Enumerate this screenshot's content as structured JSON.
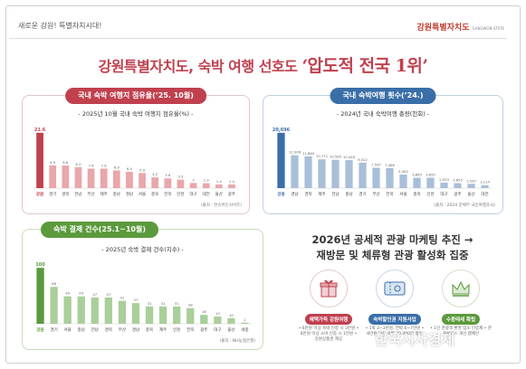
{
  "header": {
    "left_text": "새로운 강원! 특별자치시대!",
    "brand": "강원특별자치도",
    "brand_sub": "GANGWON STATE"
  },
  "headline": {
    "prefix": "강원특별자치도, 숙박 여행 선호도 ",
    "highlight": "‘압도적 전국 1위’"
  },
  "colors": {
    "red": "#c0404e",
    "red_light": "#e8a7ab",
    "blue": "#3a6ea8",
    "blue_light": "#a9bfd8",
    "green": "#5b9a3c",
    "green_light": "#a9cf9a"
  },
  "promo": {
    "line1": "2026년 공세적 관광 마케팅 추진 →",
    "line2": "재방문 및 체류형 관광 활성화 집중",
    "items": [
      {
        "icon": "gift-icon",
        "label": "혜택가득 강원여행",
        "desc": "• 6만원 이상 숙박 인증 시 3만원 • 8만원 이상 소비 인증 시 1만원 • 강원상품권 제공"
      },
      {
        "icon": "ticket-icon",
        "label": "숙박할인권 지원사업",
        "desc": "• 1박 2~3만원, 연박 6~7만원 • 8만원 이상 숙박 30,000원 할인"
      },
      {
        "icon": "crown-icon",
        "label": "수용태세 확립",
        "desc": "• 1인 관광객 환영 업소 인증제 • 관광서비스 개선 캠페인"
      }
    ]
  },
  "watermark": "한국시사경제",
  "chart_data": [
    {
      "type": "bar",
      "panel_title": "국내 숙박 여행지 점유율(’25. 10월)",
      "subtitle": "- 2025년 10월 국내 숙박 여행지 점유율(%) -",
      "source": "(출처 : 컨슈머인사이트)",
      "categories": [
        "강원",
        "경기",
        "경북",
        "전남",
        "부산",
        "제주",
        "충남",
        "경남",
        "서울",
        "충북",
        "전북",
        "인천",
        "대구",
        "대전",
        "울산",
        "광주"
      ],
      "values": [
        21.6,
        8.9,
        8.8,
        8.2,
        7.6,
        7.6,
        6.9,
        6.4,
        5.9,
        4.2,
        3.8,
        3.3,
        2.0,
        1.9,
        1.4,
        1.4
      ],
      "labels": [
        "21.6",
        "8.9",
        "8.8",
        "8.2",
        "7.6",
        "7.6",
        "6.9",
        "6.4",
        "5.9",
        "4.2",
        "3.8",
        "3.3",
        "2",
        "1.9",
        "1.4",
        "1.4"
      ],
      "ylim": [
        0,
        24
      ]
    },
    {
      "type": "bar",
      "panel_title": "국내 숙박여행 횟수(’24.)",
      "subtitle": "- 2024년 국내 숙박여행 총량(천회) -",
      "source": "(출처 : 2024 문체부 국민여행조사)",
      "categories": [
        "강원",
        "경남",
        "경북",
        "제주",
        "전남",
        "충남",
        "경기",
        "부산",
        "전북",
        "서울",
        "충북",
        "인천",
        "대구",
        "광주",
        "울산",
        "대전"
      ],
      "values": [
        20696,
        12306,
        11860,
        10771,
        10585,
        10449,
        9522,
        7597,
        7486,
        5062,
        3865,
        3895,
        2053,
        1855,
        1597,
        1114
      ],
      "labels": [
        "20,696",
        "12,306",
        "11,860",
        "10,771",
        "10,585",
        "10,449",
        "9,522",
        "7,597",
        "7,486",
        "5,062",
        "3,865",
        "3,895",
        "2,053",
        "1,855",
        "1,597",
        "1,114"
      ],
      "ylim": [
        0,
        23000
      ]
    },
    {
      "type": "bar",
      "panel_title": "숙박 결제 건수(25.1~10월)",
      "subtitle": "- 2025년 숙박 결제 건수(지수) -",
      "source": "(출처 : NH농협은행)",
      "categories": [
        "강원",
        "경기",
        "서울",
        "충남",
        "전남",
        "경북",
        "부산",
        "경남",
        "충북",
        "제주",
        "인천",
        "전북",
        "광주",
        "대구",
        "울산",
        "세종"
      ],
      "values": [
        100,
        66,
        49,
        49,
        47,
        47,
        41,
        37,
        31,
        31,
        31,
        28,
        16,
        13,
        10,
        2
      ],
      "labels": [
        "100",
        "66",
        "49",
        "49",
        "47",
        "47",
        "41",
        "37",
        "31",
        "31",
        "31",
        "28",
        "16",
        "13",
        "10",
        "2"
      ],
      "ylim": [
        0,
        110
      ]
    }
  ]
}
